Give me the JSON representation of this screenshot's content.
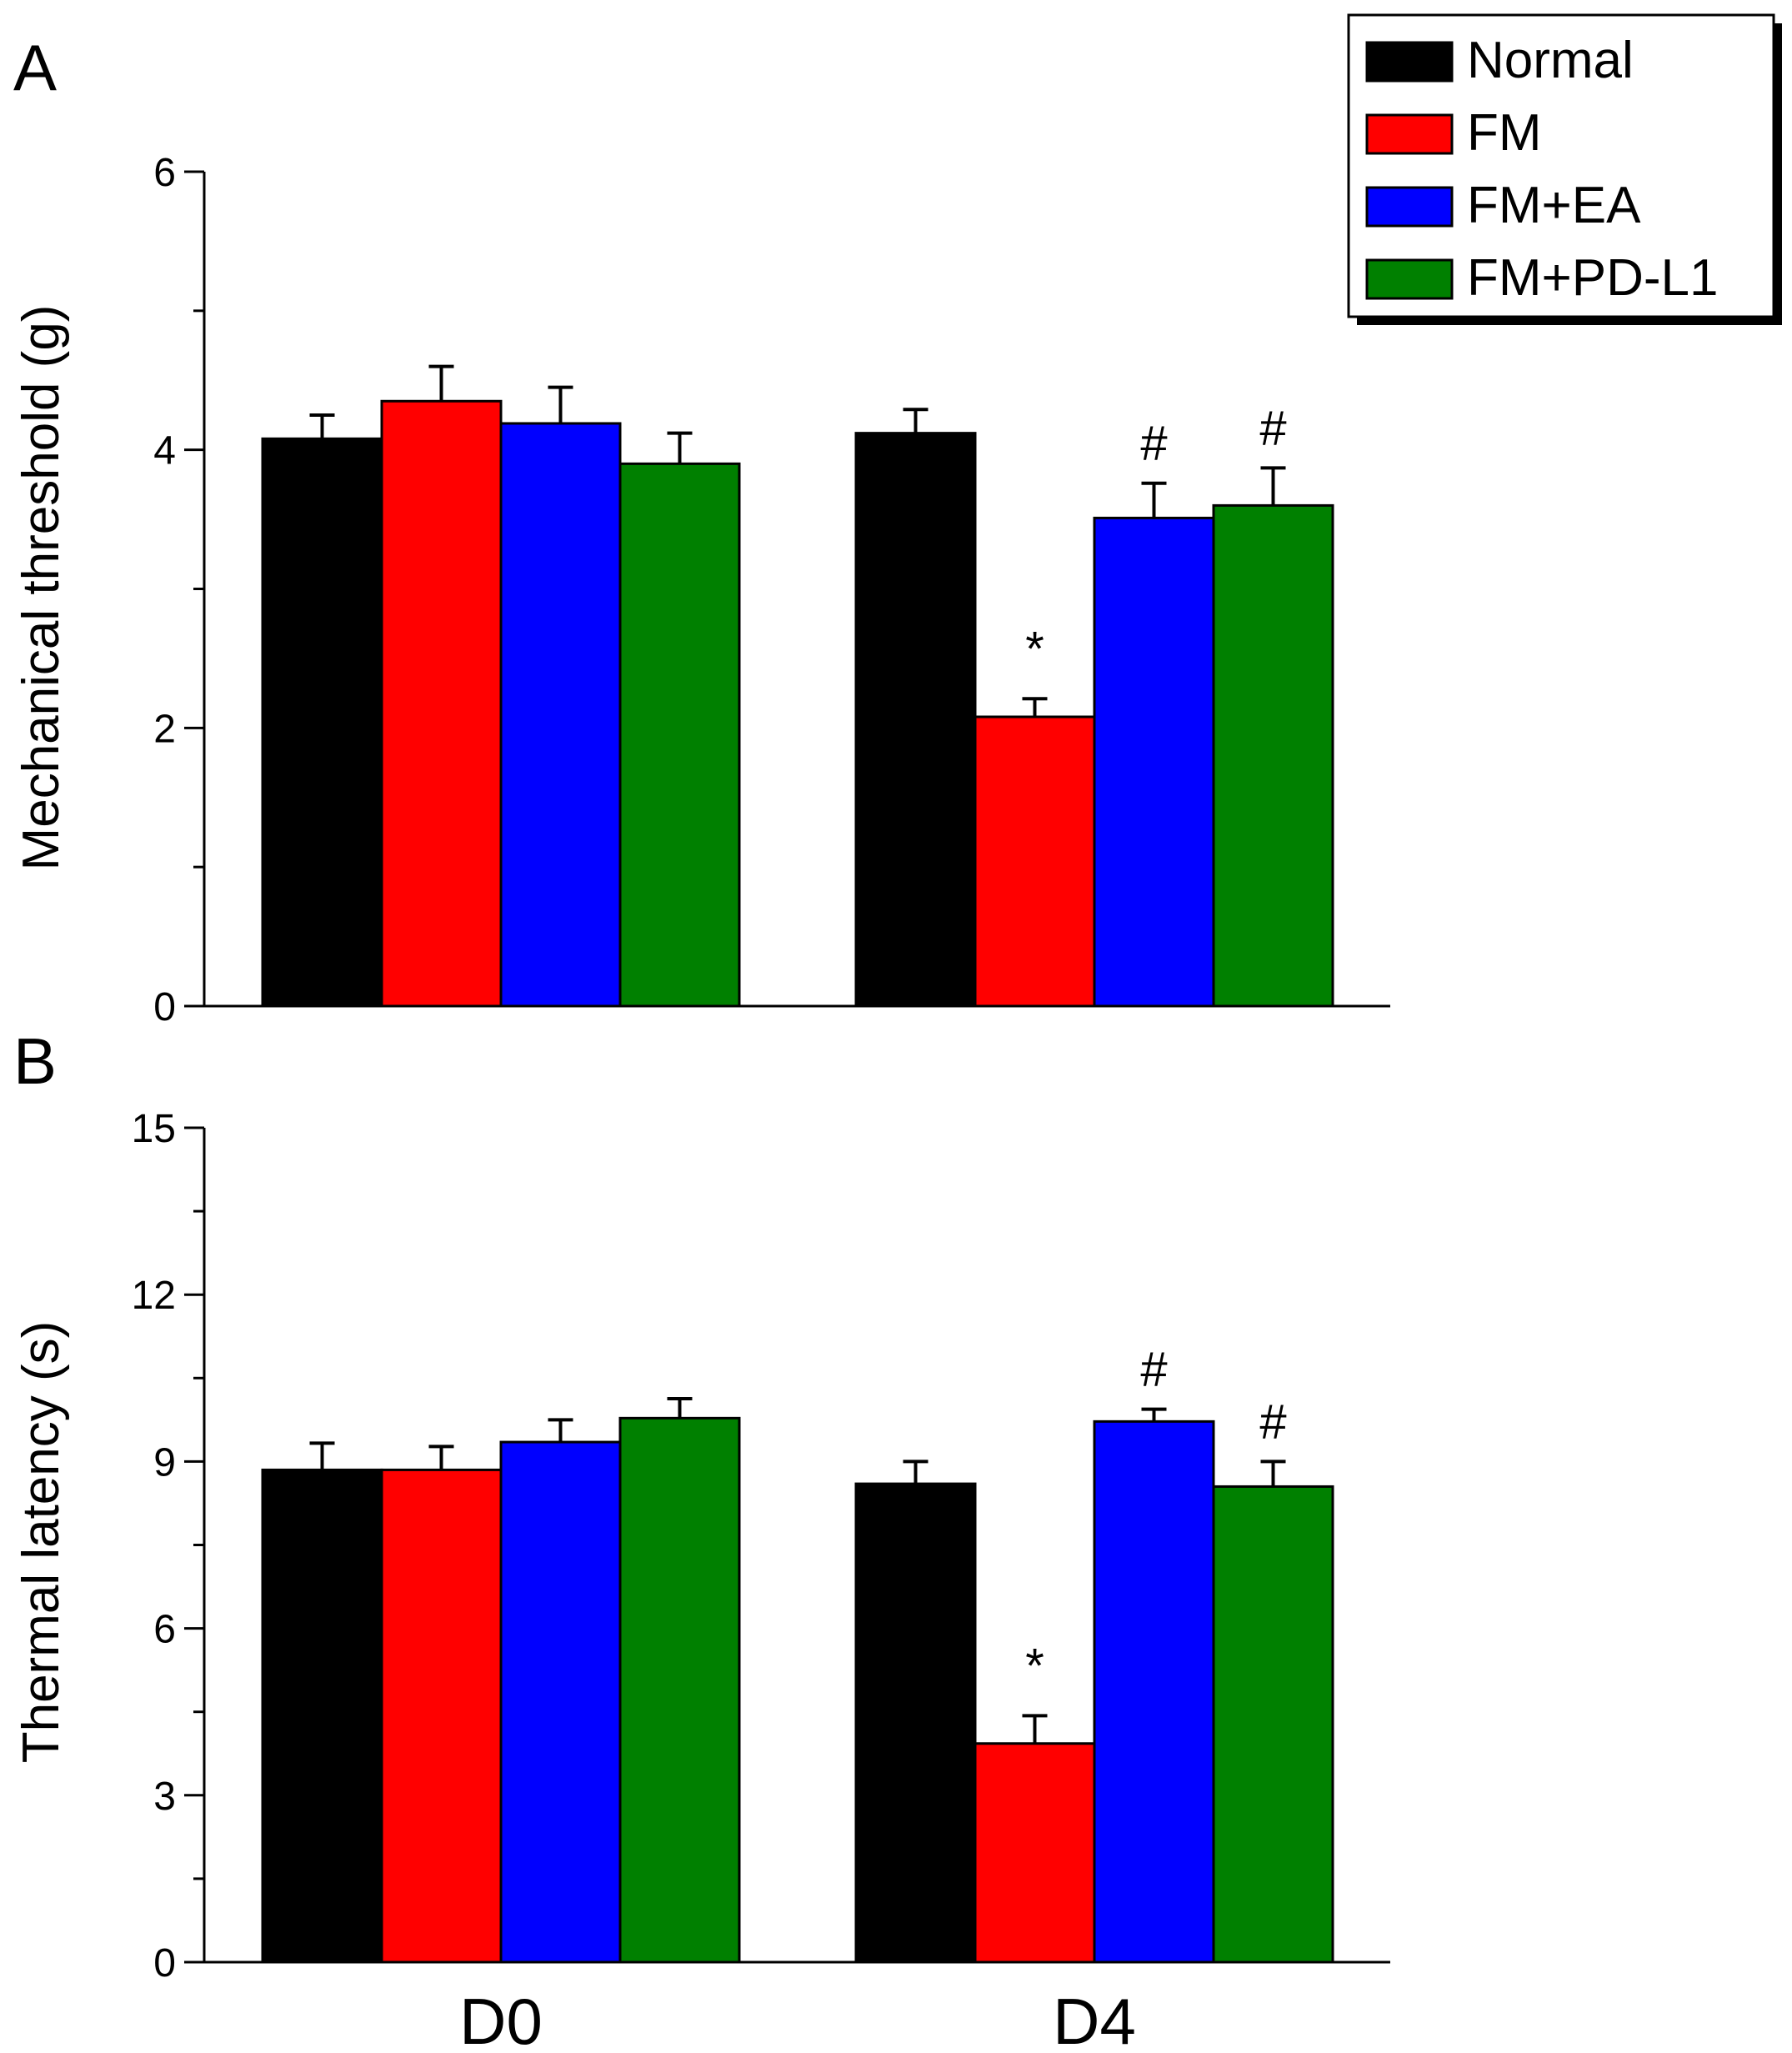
{
  "chart_data": [
    {
      "type": "bar",
      "panel": "A",
      "ylabel": "Mechanical threshold (g)",
      "xlabel": "",
      "ylim": [
        0,
        6
      ],
      "yticks": [
        0,
        2,
        4,
        6
      ],
      "categories": [
        "D0",
        "D4"
      ],
      "series": [
        {
          "name": "Normal",
          "color": "#000000",
          "values": [
            4.08,
            4.12
          ],
          "errors": [
            0.17,
            0.17
          ],
          "annotations": [
            "",
            ""
          ]
        },
        {
          "name": "FM",
          "color": "#ff0000",
          "values": [
            4.35,
            2.08
          ],
          "errors": [
            0.25,
            0.13
          ],
          "annotations": [
            "",
            "*"
          ]
        },
        {
          "name": "FM+EA",
          "color": "#0000ff",
          "values": [
            4.19,
            3.51
          ],
          "errors": [
            0.26,
            0.25
          ],
          "annotations": [
            "",
            "#"
          ]
        },
        {
          "name": "FM+PD-L1",
          "color": "#008000",
          "values": [
            3.9,
            3.6
          ],
          "errors": [
            0.22,
            0.27
          ],
          "annotations": [
            "",
            "#"
          ]
        }
      ],
      "legend": "top-right",
      "grid": false
    },
    {
      "type": "bar",
      "panel": "B",
      "ylabel": "Thermal latency (s)",
      "xlabel": "",
      "ylim": [
        0,
        15
      ],
      "yticks": [
        0,
        3,
        6,
        9,
        12,
        15
      ],
      "categories": [
        "D0",
        "D4"
      ],
      "series": [
        {
          "name": "Normal",
          "color": "#000000",
          "values": [
            8.85,
            8.6
          ],
          "errors": [
            0.48,
            0.4
          ],
          "annotations": [
            "",
            ""
          ]
        },
        {
          "name": "FM",
          "color": "#ff0000",
          "values": [
            8.85,
            3.93
          ],
          "errors": [
            0.42,
            0.5
          ],
          "annotations": [
            "",
            "*"
          ]
        },
        {
          "name": "FM+EA",
          "color": "#0000ff",
          "values": [
            9.35,
            9.72
          ],
          "errors": [
            0.4,
            0.22
          ],
          "annotations": [
            "",
            "#"
          ]
        },
        {
          "name": "FM+PD-L1",
          "color": "#008000",
          "values": [
            9.78,
            8.55
          ],
          "errors": [
            0.35,
            0.45
          ],
          "annotations": [
            "",
            "#"
          ]
        }
      ],
      "legend": "",
      "grid": false
    }
  ],
  "legend": {
    "items": [
      {
        "label": "Normal",
        "color": "#000000"
      },
      {
        "label": "FM",
        "color": "#ff0000"
      },
      {
        "label": "FM+EA",
        "color": "#0000ff"
      },
      {
        "label": "FM+PD-L1",
        "color": "#008000"
      }
    ]
  }
}
